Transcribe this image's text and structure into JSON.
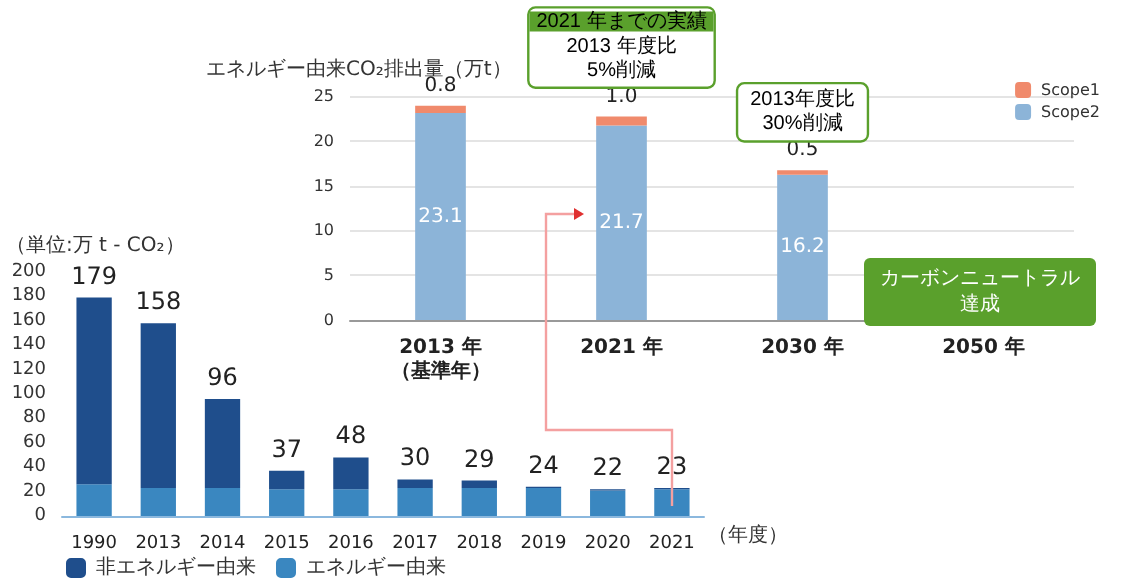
{
  "chart_data": [
    {
      "type": "bar",
      "stacked": true,
      "ylabel": "（単位:万 t - CO₂）",
      "xlabel": "（年度）",
      "categories": [
        "1990",
        "2013",
        "2014",
        "2015",
        "2016",
        "2017",
        "2018",
        "2019",
        "2020",
        "2021"
      ],
      "series": [
        {
          "name": "エネルギー由来",
          "color": "#3a87c0",
          "values": [
            26,
            23,
            23,
            22,
            22,
            23,
            23,
            23,
            21,
            22
          ]
        },
        {
          "name": "非エネルギー由来",
          "color": "#1f4e8c",
          "values": [
            153,
            135,
            73,
            15,
            26,
            7,
            6,
            1,
            1,
            1
          ]
        }
      ],
      "totals": [
        "179",
        "158",
        "96",
        "37",
        "48",
        "30",
        "29",
        "24",
        "22",
        "23"
      ],
      "ylim": [
        0,
        200
      ],
      "yticks": [
        0,
        20,
        40,
        60,
        80,
        100,
        120,
        140,
        160,
        180,
        200
      ],
      "legend": "bottom left",
      "grid": false
    },
    {
      "type": "bar",
      "stacked": true,
      "ylabel": "エネルギー由来CO₂排出量（万t）",
      "categories": [
        "2013 年（基準年）",
        "2021 年",
        "2030 年",
        "2050 年"
      ],
      "series": [
        {
          "name": "Scope2",
          "color": "#8cb4d8",
          "values": [
            23.1,
            21.7,
            16.2,
            null
          ],
          "value_labels": [
            "23.1",
            "21.7",
            "16.2",
            null
          ]
        },
        {
          "name": "Scope1",
          "color": "#f08a6c",
          "values": [
            0.8,
            1.0,
            0.5,
            null
          ],
          "value_labels": [
            "0.8",
            "1.0",
            "0.5",
            null
          ]
        }
      ],
      "ylim": [
        0,
        25
      ],
      "yticks": [
        0,
        5,
        10,
        15,
        20,
        25
      ],
      "grid": "y",
      "legend": "top right",
      "annotations": [
        {
          "text": "2021 年までの実績\n2013 年度比\n5%削減",
          "x": "2021 年",
          "y": 22.7
        },
        {
          "text": "2013年度比\n30%削減",
          "x": "2030 年",
          "y": 16.7
        },
        "カーボンニュートラル達成"
      ]
    }
  ]
}
